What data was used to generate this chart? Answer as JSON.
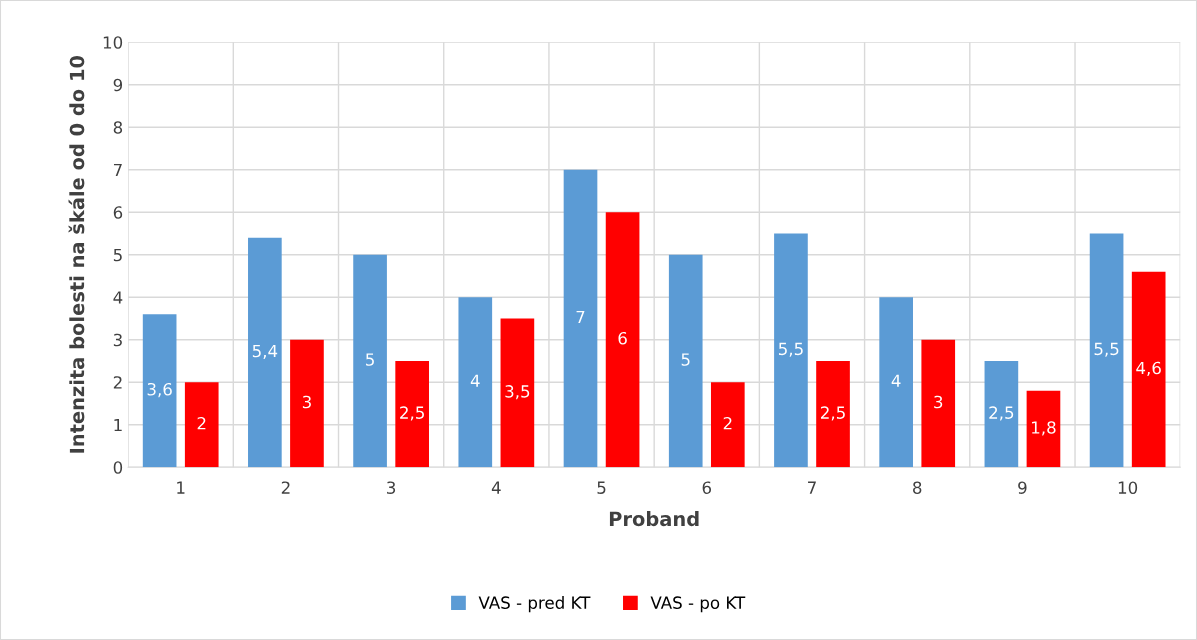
{
  "chart_data": {
    "type": "bar",
    "xlabel": "Proband",
    "ylabel": "Intenzita bolesti na škále od 0 do 10",
    "categories": [
      "1",
      "2",
      "3",
      "4",
      "5",
      "6",
      "7",
      "8",
      "9",
      "10"
    ],
    "series": [
      {
        "name": "VAS - pred KT",
        "color": "#5b9bd5",
        "values": [
          3.6,
          5.4,
          5,
          4,
          7,
          5,
          5.5,
          4,
          2.5,
          5.5
        ],
        "value_labels": [
          "3,6",
          "5,4",
          "5",
          "4",
          "7",
          "5",
          "5,5",
          "4",
          "2,5",
          "5,5"
        ]
      },
      {
        "name": "VAS - po KT",
        "color": "#ff0000",
        "values": [
          2,
          3,
          2.5,
          3.5,
          6,
          2,
          2.5,
          3,
          1.8,
          4.6
        ],
        "value_labels": [
          "2",
          "3",
          "2,5",
          "3,5",
          "6",
          "2",
          "2,5",
          "3",
          "1,8",
          "4,6"
        ]
      }
    ],
    "ylim": [
      0,
      10
    ],
    "yticks": [
      0,
      1,
      2,
      3,
      4,
      5,
      6,
      7,
      8,
      9,
      10
    ],
    "grid": true,
    "legend": "bottom"
  }
}
